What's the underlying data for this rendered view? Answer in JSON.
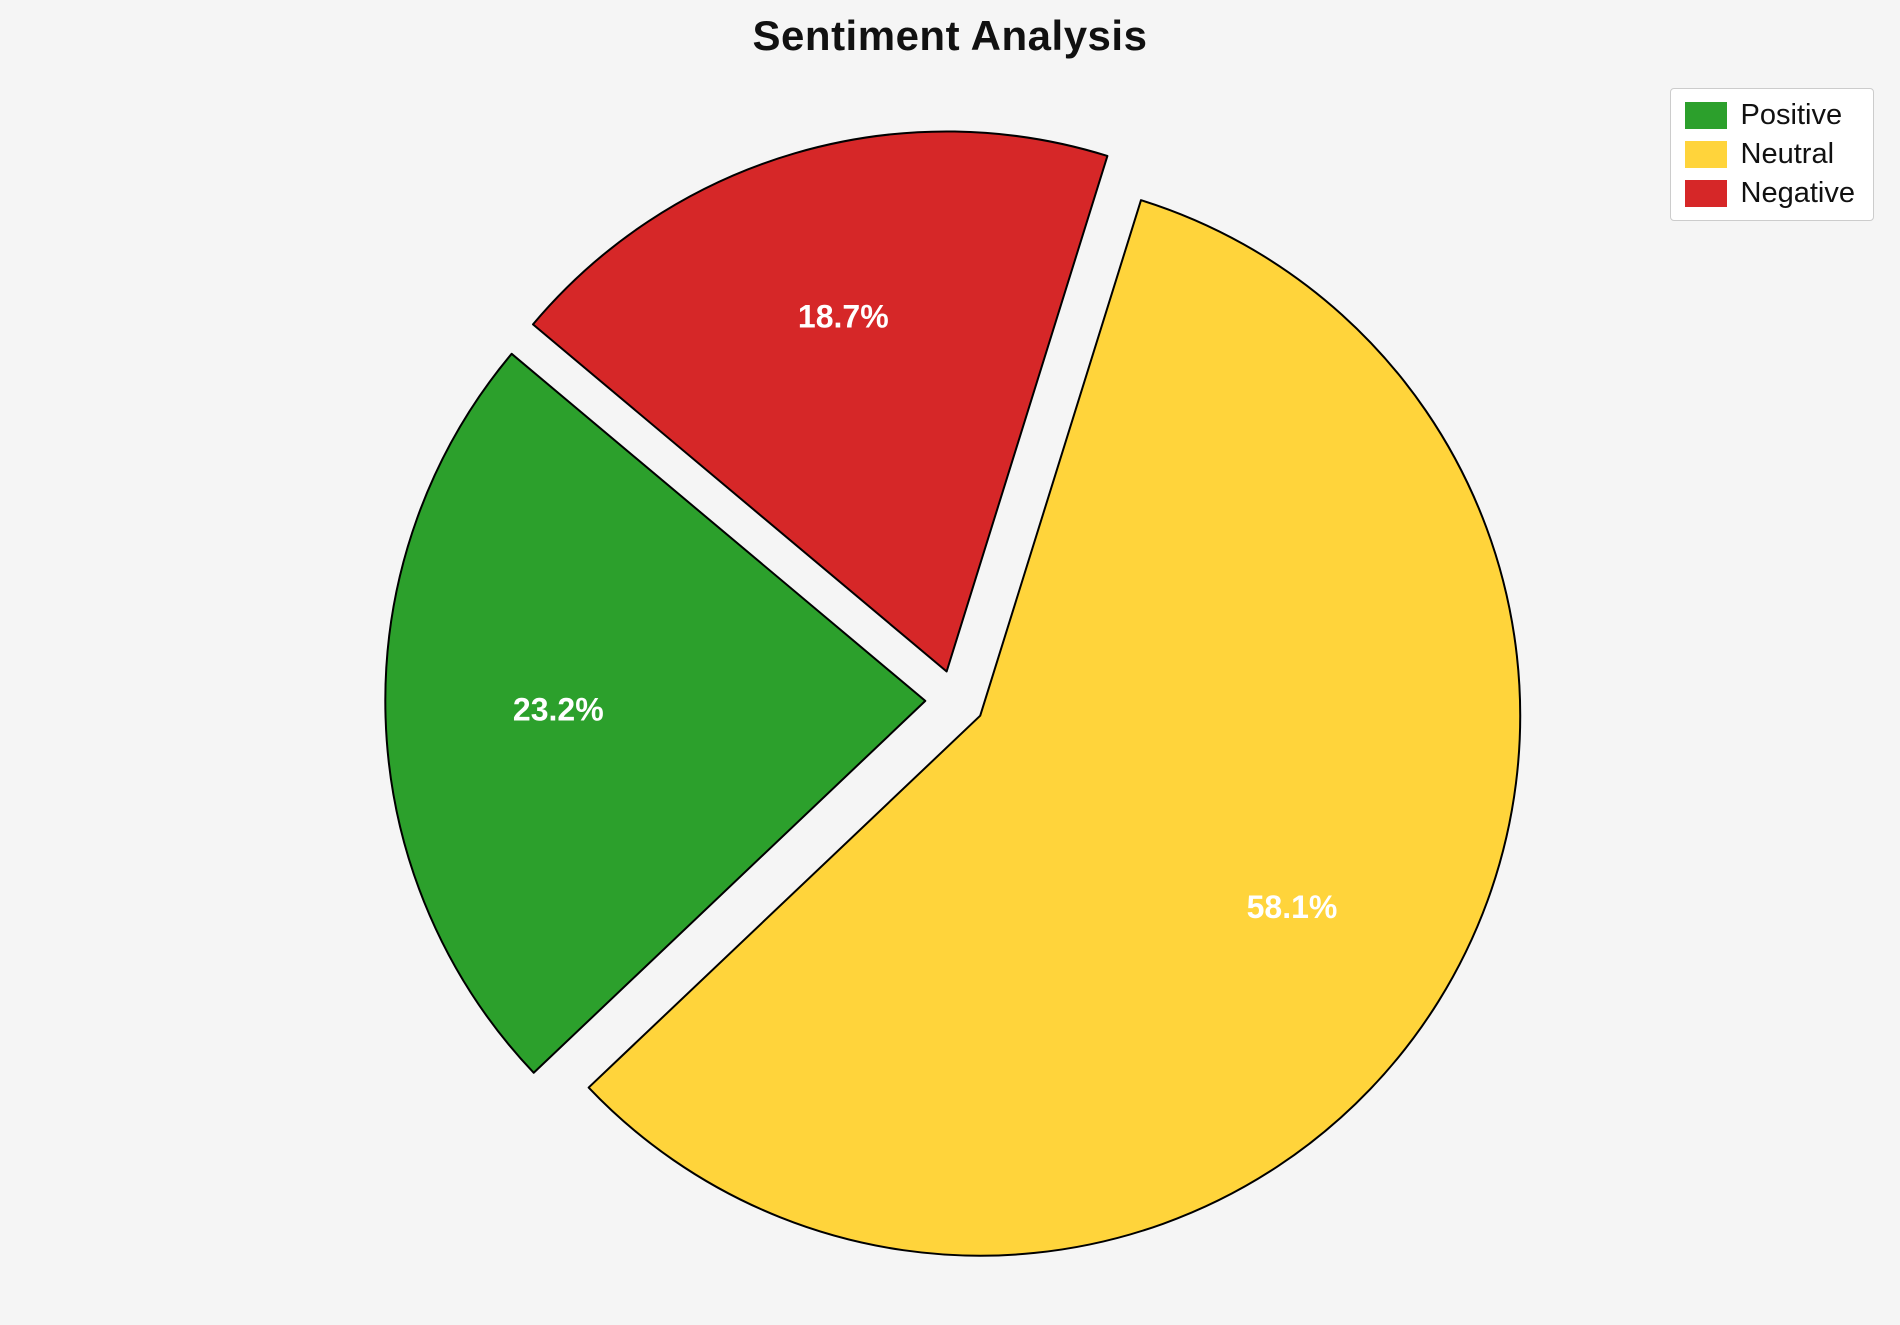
{
  "page": {
    "background_color": "#f5f5f5"
  },
  "chart_data": {
    "type": "pie",
    "title": "Sentiment Analysis",
    "slices": [
      {
        "label": "Positive",
        "value": 23.2,
        "pct_label": "23.2%",
        "color": "#2ca02c"
      },
      {
        "label": "Neutral",
        "value": 58.1,
        "pct_label": "58.1%",
        "color": "#ffd43b"
      },
      {
        "label": "Negative",
        "value": 18.7,
        "pct_label": "18.7%",
        "color": "#d62728"
      }
    ],
    "start_angle": 140,
    "counterclockwise": true,
    "explode_fraction": 0.055,
    "edge_color": "#000000",
    "edge_width": 2,
    "pct_label_color": "#ffffff",
    "legend": {
      "position": "upper right",
      "labels": [
        "Positive",
        "Neutral",
        "Negative"
      ]
    }
  }
}
